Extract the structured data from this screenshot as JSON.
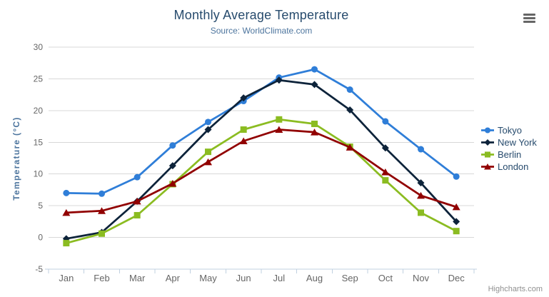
{
  "chart_data": {
    "type": "line",
    "title": "Monthly Average Temperature",
    "subtitle": "Source: WorldClimate.com",
    "categories": [
      "Jan",
      "Feb",
      "Mar",
      "Apr",
      "May",
      "Jun",
      "Jul",
      "Aug",
      "Sep",
      "Oct",
      "Nov",
      "Dec"
    ],
    "series": [
      {
        "name": "Tokyo",
        "color": "#2f7ed8",
        "marker": "circle",
        "values": [
          7.0,
          6.9,
          9.5,
          14.5,
          18.2,
          21.5,
          25.2,
          26.5,
          23.3,
          18.3,
          13.9,
          9.6
        ]
      },
      {
        "name": "New York",
        "color": "#0d233a",
        "marker": "diamond",
        "values": [
          -0.2,
          0.8,
          5.7,
          11.3,
          17.0,
          22.0,
          24.8,
          24.1,
          20.1,
          14.1,
          8.6,
          2.5
        ]
      },
      {
        "name": "Berlin",
        "color": "#8bbc21",
        "marker": "square",
        "values": [
          -0.9,
          0.6,
          3.5,
          8.4,
          13.5,
          17.0,
          18.6,
          17.9,
          14.3,
          9.0,
          3.9,
          1.0
        ]
      },
      {
        "name": "London",
        "color": "#910000",
        "marker": "triangle",
        "values": [
          3.9,
          4.2,
          5.7,
          8.5,
          11.9,
          15.2,
          17.0,
          16.6,
          14.2,
          10.3,
          6.6,
          4.8
        ]
      }
    ],
    "xlabel": "",
    "ylabel": "Temperature (°C)",
    "ylim": [
      -5,
      30
    ],
    "yticks": [
      -5,
      0,
      5,
      10,
      15,
      20,
      25,
      30
    ],
    "grid": true,
    "legend_position": "right",
    "colors": {
      "title": "#274b6d",
      "subtitle": "#4d759e",
      "axis_label": "#666666",
      "axis_title": "#4d759e",
      "gridline": "#d8d8d8",
      "axis_line": "#c0d0e0",
      "legend_text": "#274b6d",
      "credits_text": "#909090",
      "menu_icon": "#666666"
    }
  },
  "toolbar": {
    "context_button_icon": "hamburger-menu"
  },
  "credits": {
    "label": "Highcharts.com"
  }
}
